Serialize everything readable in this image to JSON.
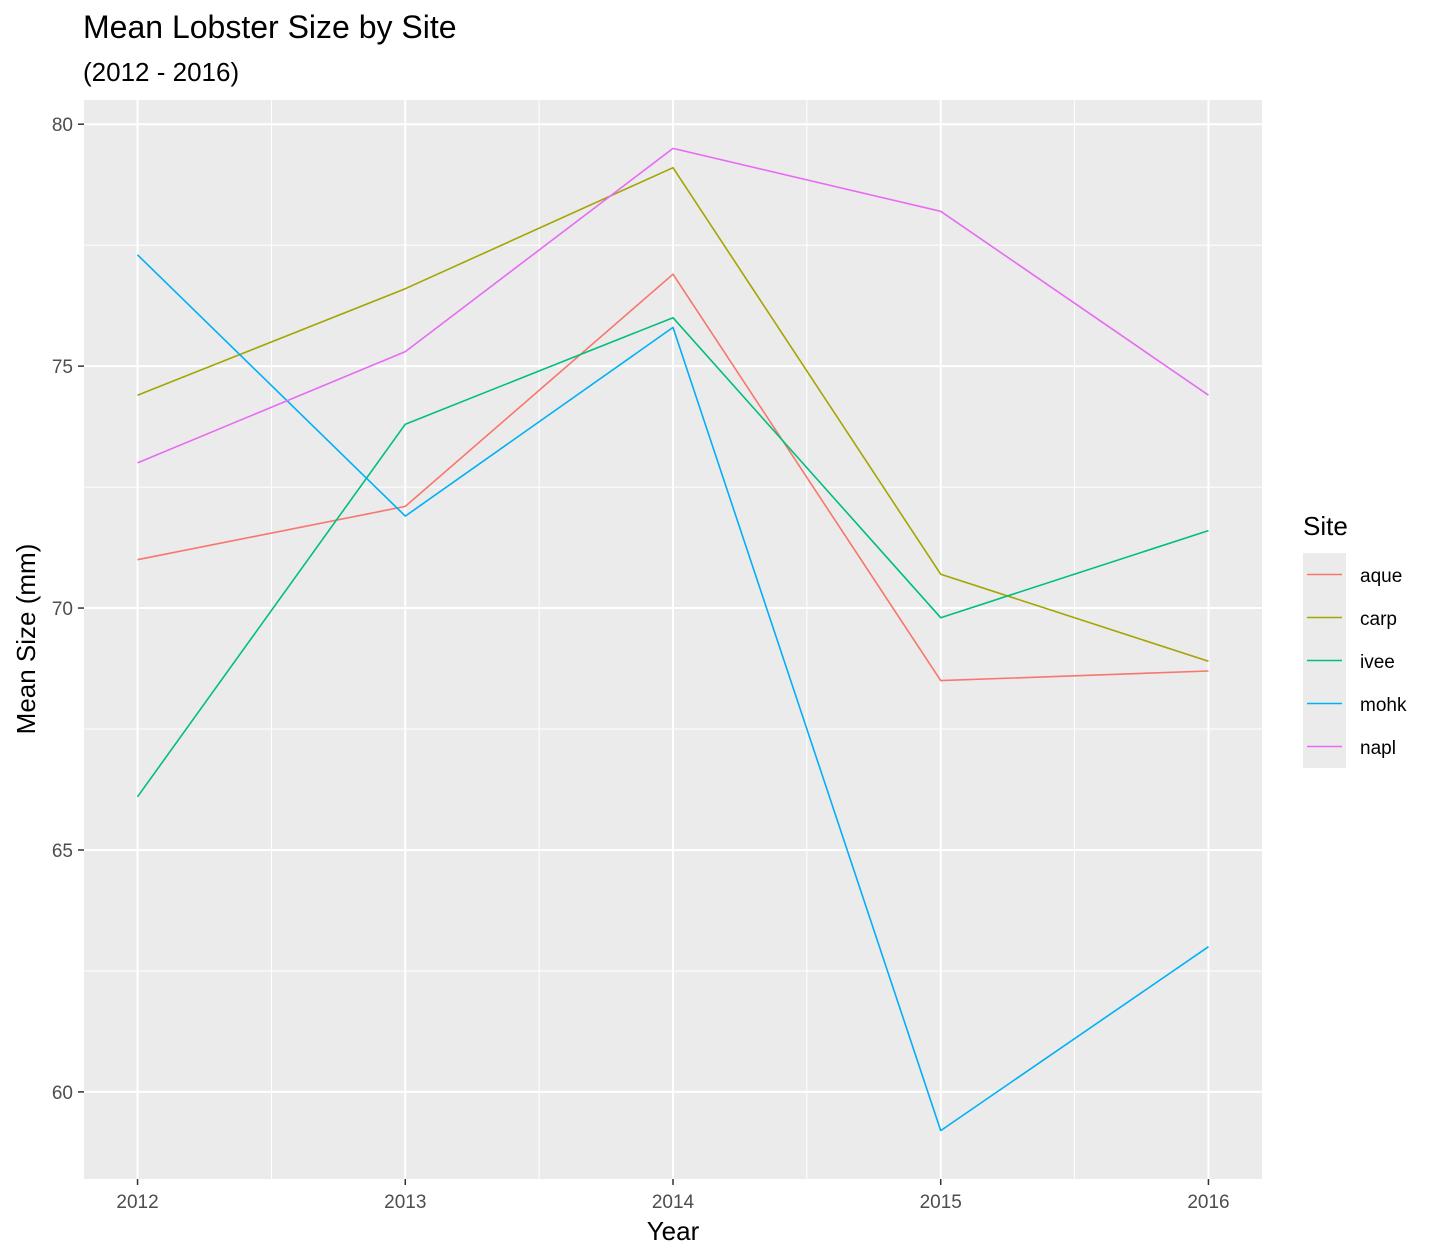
{
  "chart_data": {
    "type": "line",
    "title": "Mean Lobster Size by Site",
    "subtitle": "(2012 - 2016)",
    "xlabel": "Year",
    "ylabel": "Mean Size (mm)",
    "x": [
      2012,
      2013,
      2014,
      2015,
      2016
    ],
    "x_tick_labels": [
      "2012",
      "2013",
      "2014",
      "2015",
      "2016"
    ],
    "xlim": [
      2011.8,
      2016.2
    ],
    "ylim": [
      58.2,
      80.5
    ],
    "y_ticks": [
      60,
      65,
      70,
      75,
      80
    ],
    "y_tick_labels": [
      "60",
      "65",
      "70",
      "75",
      "80"
    ],
    "grid": true,
    "legend_title": "Site",
    "legend_position": "right",
    "background_color": "#EBEBEB",
    "grid_color": "#FFFFFF",
    "series": [
      {
        "name": "aque",
        "color": "#F8766D",
        "values": [
          71.0,
          72.1,
          76.9,
          68.5,
          68.7
        ]
      },
      {
        "name": "carp",
        "color": "#A3A500",
        "values": [
          74.4,
          76.6,
          79.1,
          70.7,
          68.9
        ]
      },
      {
        "name": "ivee",
        "color": "#00BF7D",
        "values": [
          66.1,
          73.8,
          76.0,
          69.8,
          71.6
        ]
      },
      {
        "name": "mohk",
        "color": "#00B0F6",
        "values": [
          77.3,
          71.9,
          75.8,
          59.2,
          63.0
        ]
      },
      {
        "name": "napl",
        "color": "#E76BF3",
        "values": [
          73.0,
          75.3,
          79.5,
          78.2,
          74.4
        ]
      }
    ]
  }
}
